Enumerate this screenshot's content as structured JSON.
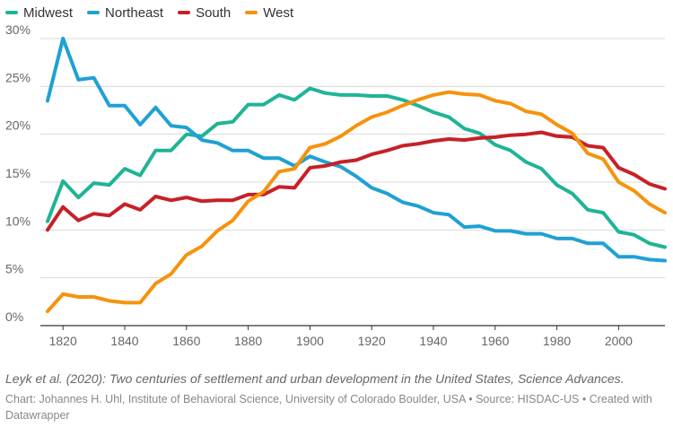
{
  "chart_data": {
    "type": "line",
    "title": "",
    "xlabel": "",
    "ylabel": "",
    "xlim": [
      1815,
      2015
    ],
    "ylim": [
      0,
      30
    ],
    "y_ticks": [
      0,
      5,
      10,
      15,
      20,
      25,
      30
    ],
    "y_tick_labels": [
      "0%",
      "5%",
      "10%",
      "15%",
      "20%",
      "25%",
      "30%"
    ],
    "x_ticks": [
      1820,
      1840,
      1860,
      1880,
      1900,
      1920,
      1940,
      1960,
      1980,
      2000
    ],
    "x_tick_labels": [
      "1820",
      "1840",
      "1860",
      "1880",
      "1900",
      "1920",
      "1940",
      "1960",
      "1980",
      "2000"
    ],
    "grid": "horizontal",
    "legend_position": "top-left",
    "x": [
      1815,
      1820,
      1825,
      1830,
      1835,
      1840,
      1845,
      1850,
      1855,
      1860,
      1865,
      1870,
      1875,
      1880,
      1885,
      1890,
      1895,
      1900,
      1905,
      1910,
      1915,
      1920,
      1925,
      1930,
      1935,
      1940,
      1945,
      1950,
      1955,
      1960,
      1965,
      1970,
      1975,
      1980,
      1985,
      1990,
      1995,
      2000,
      2005,
      2010,
      2015
    ],
    "series": [
      {
        "name": "Midwest",
        "color": "#1fb495",
        "values": [
          10.9,
          15.1,
          13.4,
          14.9,
          14.7,
          16.4,
          15.7,
          18.3,
          18.3,
          20.0,
          19.8,
          21.1,
          21.3,
          23.1,
          23.1,
          24.1,
          23.6,
          24.8,
          24.3,
          24.1,
          24.1,
          24.0,
          24.0,
          23.6,
          23.0,
          22.3,
          21.8,
          20.6,
          20.1,
          18.9,
          18.3,
          17.1,
          16.4,
          14.7,
          13.8,
          12.1,
          11.8,
          9.8,
          9.5,
          8.6,
          8.2
        ]
      },
      {
        "name": "Northeast",
        "color": "#1fa1d3",
        "values": [
          23.5,
          30.0,
          25.7,
          25.9,
          23.0,
          23.0,
          21.0,
          22.8,
          20.9,
          20.7,
          19.4,
          19.1,
          18.3,
          18.3,
          17.5,
          17.5,
          16.7,
          17.7,
          17.1,
          16.6,
          15.6,
          14.4,
          13.8,
          12.9,
          12.5,
          11.8,
          11.6,
          10.3,
          10.4,
          9.9,
          9.9,
          9.6,
          9.6,
          9.1,
          9.1,
          8.6,
          8.6,
          7.2,
          7.2,
          6.9,
          6.8
        ]
      },
      {
        "name": "South",
        "color": "#c62127",
        "values": [
          10.0,
          12.4,
          11.0,
          11.7,
          11.5,
          12.7,
          12.1,
          13.5,
          13.1,
          13.4,
          13.0,
          13.1,
          13.1,
          13.7,
          13.7,
          14.5,
          14.4,
          16.5,
          16.7,
          17.1,
          17.3,
          17.9,
          18.3,
          18.8,
          19.0,
          19.3,
          19.5,
          19.4,
          19.6,
          19.7,
          19.9,
          20.0,
          20.2,
          19.8,
          19.7,
          18.8,
          18.6,
          16.5,
          15.8,
          14.8,
          14.3
        ]
      },
      {
        "name": "West",
        "color": "#f5930d",
        "values": [
          1.5,
          3.3,
          3.0,
          3.0,
          2.6,
          2.4,
          2.4,
          4.4,
          5.4,
          7.4,
          8.3,
          9.9,
          11.0,
          13.0,
          14.0,
          16.1,
          16.4,
          18.6,
          19.0,
          19.8,
          20.9,
          21.8,
          22.3,
          23.0,
          23.6,
          24.1,
          24.4,
          24.2,
          24.1,
          23.5,
          23.2,
          22.4,
          22.1,
          21.0,
          20.1,
          18.0,
          17.4,
          15.0,
          14.1,
          12.7,
          11.8
        ]
      }
    ]
  },
  "footer": {
    "source_note": "Leyk et al. (2020): Two centuries of settlement and urban development in the United States, Science Advances.",
    "credit": "Chart: Johannes H. Uhl, Institute of Behavioral Science, University of Colorado Boulder, USA • Source: HISDAC-US • Created with Datawrapper"
  }
}
